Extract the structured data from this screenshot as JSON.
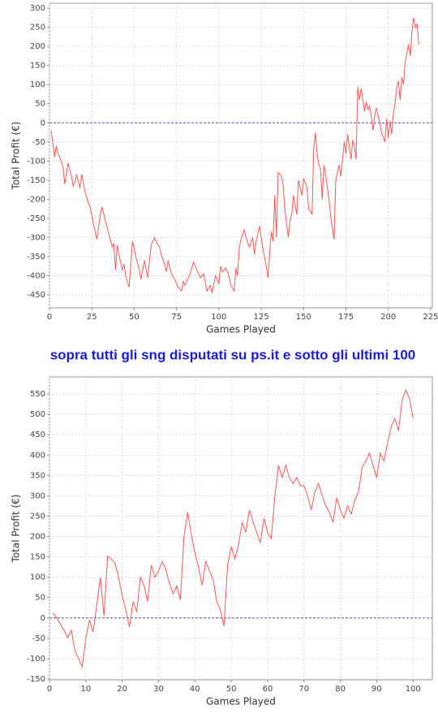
{
  "caption": "sopra tutti gli sng disputati su ps.it e sotto gli ultimi 100",
  "chart_data": [
    {
      "type": "line",
      "xlabel": "Games Played",
      "ylabel": "Total Profit (€)",
      "color": "#ff5555",
      "grid": true,
      "ref_line": 0,
      "xlim": [
        0,
        226
      ],
      "ylim": [
        -484,
        313
      ],
      "xticks": [
        0,
        25,
        50,
        75,
        100,
        125,
        150,
        175,
        200,
        225
      ],
      "yticks": [
        -450,
        -400,
        -350,
        -300,
        -250,
        -200,
        -150,
        -100,
        -50,
        0,
        50,
        100,
        150,
        200,
        250,
        300
      ],
      "x": [
        1,
        3,
        4,
        5,
        7,
        8,
        9,
        11,
        13,
        14,
        15,
        16,
        18,
        19,
        21,
        23,
        24,
        26,
        28,
        30,
        31,
        33,
        35,
        37,
        38,
        39,
        40,
        41,
        43,
        44,
        45,
        47,
        49,
        51,
        53,
        54,
        56,
        58,
        60,
        62,
        64,
        65,
        66,
        68,
        69,
        70,
        72,
        74,
        76,
        78,
        79,
        80,
        83,
        85,
        87,
        89,
        91,
        93,
        95,
        96,
        98,
        100,
        101,
        102,
        104,
        106,
        107,
        109,
        110,
        111,
        112,
        113,
        115,
        116,
        118,
        120,
        121,
        122,
        124,
        126,
        128,
        129,
        130,
        131,
        132,
        133,
        134,
        135,
        137,
        138,
        139,
        141,
        142,
        143,
        144,
        146,
        147,
        149,
        150,
        152,
        153,
        154,
        155,
        156,
        157,
        158,
        159,
        160,
        161,
        162,
        163,
        165,
        166,
        168,
        169,
        171,
        172,
        174,
        175,
        176,
        178,
        179,
        180,
        181,
        182,
        183,
        184,
        185,
        186,
        187,
        188,
        189,
        190,
        191,
        192,
        193,
        195,
        196,
        198,
        199,
        200,
        201,
        202,
        203,
        204,
        205,
        206,
        207,
        208,
        209,
        210,
        212,
        213,
        214,
        215,
        216,
        217,
        218
      ],
      "values": [
        -20,
        -90,
        -60,
        -80,
        -100,
        -115,
        -160,
        -105,
        -140,
        -165,
        -155,
        -135,
        -170,
        -135,
        -180,
        -210,
        -220,
        -265,
        -305,
        -240,
        -220,
        -255,
        -290,
        -325,
        -315,
        -385,
        -320,
        -345,
        -385,
        -370,
        -400,
        -430,
        -310,
        -350,
        -385,
        -410,
        -360,
        -405,
        -320,
        -300,
        -320,
        -325,
        -345,
        -370,
        -390,
        -360,
        -395,
        -410,
        -430,
        -440,
        -415,
        -425,
        -395,
        -365,
        -385,
        -405,
        -395,
        -440,
        -425,
        -445,
        -400,
        -420,
        -375,
        -390,
        -380,
        -400,
        -425,
        -440,
        -380,
        -400,
        -330,
        -305,
        -280,
        -300,
        -325,
        -300,
        -345,
        -310,
        -270,
        -330,
        -375,
        -405,
        -340,
        -285,
        -310,
        -190,
        -300,
        -130,
        -140,
        -165,
        -230,
        -300,
        -255,
        -240,
        -190,
        -240,
        -150,
        -190,
        -145,
        -170,
        -225,
        -230,
        -240,
        -70,
        -25,
        -80,
        -110,
        -120,
        -200,
        -110,
        -135,
        -200,
        -245,
        -305,
        -150,
        -110,
        -140,
        -50,
        -80,
        -30,
        -95,
        -45,
        -60,
        -95,
        95,
        60,
        90,
        60,
        30,
        55,
        35,
        45,
        15,
        -20,
        20,
        40,
        0,
        -25,
        -50,
        10,
        -40,
        5,
        -30,
        25,
        50,
        95,
        110,
        60,
        120,
        100,
        160,
        205,
        175,
        240,
        275,
        250,
        260,
        205
      ]
    },
    {
      "type": "line",
      "xlabel": "Games Played",
      "ylabel": "Total Profit (€)",
      "color": "#ff5555",
      "grid": true,
      "ref_line": 0,
      "xlim": [
        0,
        105.3
      ],
      "ylim": [
        -152,
        592
      ],
      "xticks": [
        0,
        10,
        20,
        30,
        40,
        50,
        60,
        70,
        80,
        90,
        100
      ],
      "yticks": [
        -150,
        -100,
        -50,
        0,
        50,
        100,
        150,
        200,
        250,
        300,
        350,
        400,
        450,
        500,
        550
      ],
      "x": [
        1,
        2,
        3,
        4,
        5,
        6,
        7,
        8,
        9,
        10,
        11,
        12,
        13,
        14,
        15,
        16,
        17,
        18,
        19,
        20,
        21,
        22,
        23,
        24,
        25,
        26,
        27,
        28,
        29,
        30,
        31,
        32,
        33,
        34,
        35,
        36,
        37,
        38,
        39,
        40,
        41,
        42,
        43,
        44,
        45,
        46,
        47,
        48,
        49,
        50,
        51,
        52,
        53,
        54,
        55,
        56,
        57,
        58,
        59,
        60,
        61,
        62,
        63,
        64,
        65,
        66,
        67,
        68,
        69,
        70,
        71,
        72,
        73,
        74,
        75,
        76,
        77,
        78,
        79,
        80,
        81,
        82,
        83,
        84,
        85,
        86,
        87,
        88,
        89,
        90,
        91,
        92,
        93,
        94,
        95,
        96,
        97,
        98,
        99,
        100
      ],
      "values": [
        12,
        0,
        -15,
        -30,
        -48,
        -30,
        -80,
        -100,
        -120,
        -50,
        -5,
        -35,
        30,
        100,
        5,
        152,
        145,
        135,
        100,
        55,
        20,
        -22,
        40,
        15,
        100,
        80,
        40,
        130,
        100,
        115,
        138,
        120,
        85,
        60,
        78,
        45,
        200,
        260,
        205,
        160,
        125,
        80,
        140,
        115,
        95,
        40,
        20,
        -20,
        130,
        175,
        145,
        180,
        235,
        210,
        265,
        235,
        210,
        185,
        245,
        210,
        195,
        300,
        375,
        345,
        375,
        345,
        330,
        345,
        325,
        325,
        300,
        265,
        310,
        330,
        300,
        275,
        260,
        235,
        295,
        265,
        245,
        275,
        255,
        290,
        310,
        370,
        385,
        405,
        375,
        345,
        405,
        385,
        430,
        470,
        490,
        460,
        535,
        560,
        540,
        490
      ]
    }
  ]
}
